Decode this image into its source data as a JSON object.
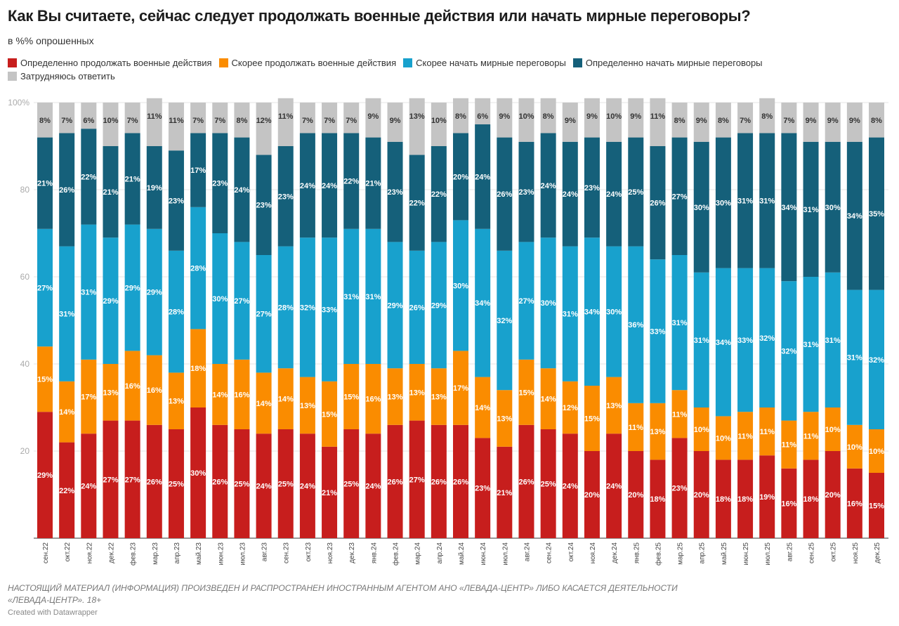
{
  "chart_data": {
    "type": "bar",
    "stacked": true,
    "title": "Как Вы считаете, сейчас следует продолжать военные действия или начать мирные переговоры?",
    "subtitle": "в %% опрошенных",
    "ylim": [
      0,
      100
    ],
    "yticks": [
      "100%",
      "80",
      "60",
      "40",
      "20"
    ],
    "grid": true,
    "legend_placement": "top",
    "categories": [
      "сен.22",
      "окт.22",
      "ноя.22",
      "дек.22",
      "фев.23",
      "мар.23",
      "апр.23",
      "май.23",
      "июн.23",
      "июл.23",
      "авг.23",
      "сен.23",
      "окт.23",
      "ноя.23",
      "дек.23",
      "янв.24",
      "фев.24",
      "мар.24",
      "апр.24",
      "май.24",
      "июн.24",
      "июл.24",
      "авг.24",
      "сен.24",
      "окт.24",
      "ноя.24",
      "дек.24",
      "янв.25",
      "фев.25",
      "мар.25",
      "апр.25",
      "май.25",
      "июн.25",
      "июл.25",
      "авг.25",
      "сен.25",
      "окт.25",
      "ноя.25",
      "дек.25"
    ],
    "series": [
      {
        "name": "Определенно продолжать военные действия",
        "color": "#c71e1d",
        "values": [
          29,
          22,
          24,
          27,
          27,
          26,
          25,
          30,
          26,
          25,
          24,
          25,
          24,
          21,
          25,
          24,
          26,
          27,
          26,
          26,
          23,
          21,
          26,
          25,
          24,
          20,
          24,
          20,
          18,
          23,
          20,
          18,
          18,
          19,
          16,
          18,
          20,
          16,
          15
        ]
      },
      {
        "name": "Скорее продолжать военные действия",
        "color": "#fa8c00",
        "values": [
          15,
          14,
          17,
          13,
          16,
          16,
          13,
          18,
          14,
          16,
          14,
          14,
          13,
          15,
          15,
          16,
          13,
          13,
          13,
          17,
          14,
          13,
          15,
          14,
          12,
          15,
          13,
          11,
          13,
          11,
          10,
          10,
          11,
          11,
          11,
          11,
          10,
          10,
          10
        ]
      },
      {
        "name": "Скорее начать мирные переговоры",
        "color": "#18a1cd",
        "values": [
          27,
          31,
          31,
          29,
          29,
          29,
          28,
          28,
          30,
          27,
          27,
          28,
          32,
          33,
          31,
          31,
          29,
          26,
          29,
          30,
          34,
          32,
          27,
          30,
          31,
          34,
          30,
          36,
          33,
          31,
          31,
          34,
          33,
          32,
          32,
          31,
          31,
          31,
          32
        ]
      },
      {
        "name": "Определенно начать мирные переговоры",
        "color": "#15607a",
        "values": [
          21,
          26,
          22,
          21,
          21,
          19,
          23,
          17,
          23,
          24,
          23,
          23,
          24,
          24,
          22,
          21,
          23,
          22,
          22,
          20,
          24,
          26,
          23,
          24,
          24,
          23,
          24,
          25,
          26,
          27,
          30,
          30,
          31,
          31,
          34,
          31,
          30,
          34,
          35
        ]
      },
      {
        "name": "Затрудняюсь ответить",
        "color": "#c4c4c4",
        "values": [
          8,
          7,
          6,
          10,
          7,
          11,
          11,
          7,
          7,
          8,
          12,
          11,
          7,
          7,
          7,
          9,
          9,
          13,
          10,
          8,
          6,
          9,
          10,
          8,
          9,
          9,
          10,
          9,
          11,
          8,
          9,
          8,
          7,
          8,
          7,
          9,
          9,
          9,
          8
        ]
      }
    ]
  },
  "footer": {
    "disclaimer_line1": "НАСТОЯЩИЙ МАТЕРИАЛ (ИНФОРМАЦИЯ) ПРОИЗВЕДЕН И РАСПРОСТРАНЕН ИНОСТРАННЫМ АГЕНТОМ АНО «ЛЕВАДА-ЦЕНТР» ЛИБО КАСАЕТСЯ ДЕЯТЕЛЬНОСТИ",
    "disclaimer_line2": "«ЛЕВАДА-ЦЕНТР». 18+",
    "credit": "Created with Datawrapper"
  }
}
